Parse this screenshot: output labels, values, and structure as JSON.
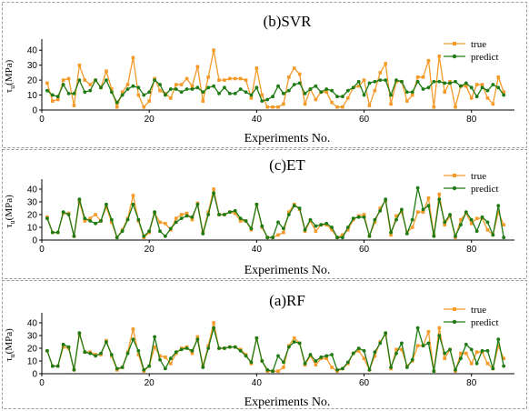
{
  "colors": {
    "true": "#F39A28",
    "predict": "#1E7A12",
    "frame": "#9a9a9a"
  },
  "chart_data": [
    {
      "type": "line",
      "title": "(b)SVR",
      "xlabel": "Experiments No.",
      "ylabel_main": "τ",
      "ylabel_sub": "u",
      "ylabel_unit": "(MPa)",
      "xlim": [
        0,
        88
      ],
      "ylim": [
        0,
        45
      ],
      "xticks": [
        0,
        20,
        40,
        60,
        80
      ],
      "yticks": [
        0,
        10,
        20,
        30,
        40
      ],
      "legend": "top-right",
      "x": [
        1,
        2,
        3,
        4,
        5,
        6,
        7,
        8,
        9,
        10,
        11,
        12,
        13,
        14,
        15,
        16,
        17,
        18,
        19,
        20,
        21,
        22,
        23,
        24,
        25,
        26,
        27,
        28,
        29,
        30,
        31,
        32,
        33,
        34,
        35,
        36,
        37,
        38,
        39,
        40,
        41,
        42,
        43,
        44,
        45,
        46,
        47,
        48,
        49,
        50,
        51,
        52,
        53,
        54,
        55,
        56,
        57,
        58,
        59,
        60,
        61,
        62,
        63,
        64,
        65,
        66,
        67,
        68,
        69,
        70,
        71,
        72,
        73,
        74,
        75,
        76,
        77,
        78,
        79,
        80,
        81,
        82,
        83,
        84,
        85,
        86
      ],
      "series": [
        {
          "name": "true",
          "values": [
            18,
            6,
            7,
            20,
            21,
            3,
            30,
            20,
            17,
            20,
            15,
            26,
            14,
            2,
            12,
            17,
            35,
            10,
            2,
            6,
            21,
            13,
            11,
            8,
            17,
            17,
            21,
            16,
            29,
            6,
            22,
            40,
            20,
            20,
            21,
            21,
            21,
            20,
            8,
            28,
            10,
            2,
            2,
            2,
            4,
            22,
            28,
            24,
            4,
            14,
            7,
            12,
            12,
            5,
            2,
            2,
            8,
            15,
            16,
            20,
            3,
            13,
            25,
            31,
            4,
            19,
            19,
            6,
            10,
            22,
            22,
            33,
            2,
            36,
            12,
            19,
            2,
            16,
            16,
            8,
            17,
            17,
            8,
            4,
            22,
            12
          ]
        },
        {
          "name": "predict",
          "values": [
            13,
            10,
            9,
            17,
            11,
            11,
            20,
            12,
            13,
            20,
            15,
            20,
            12,
            5,
            10,
            14,
            16,
            15,
            10,
            12,
            20,
            17,
            10,
            14,
            14,
            12,
            14,
            14,
            15,
            12,
            15,
            16,
            11,
            15,
            11,
            11,
            14,
            12,
            10,
            15,
            6,
            7,
            9,
            16,
            11,
            13,
            17,
            18,
            11,
            14,
            16,
            12,
            14,
            13,
            9,
            9,
            13,
            15,
            19,
            10,
            18,
            19,
            20,
            20,
            10,
            20,
            19,
            12,
            12,
            19,
            14,
            15,
            19,
            19,
            18,
            18,
            19,
            16,
            18,
            15,
            9,
            15,
            13,
            17,
            15,
            10
          ]
        }
      ]
    },
    {
      "type": "line",
      "title": "(c)ET",
      "xlabel": "Experiments No.",
      "ylabel_main": "τ",
      "ylabel_sub": "u",
      "ylabel_unit": "(MPa)",
      "xlim": [
        0,
        88
      ],
      "ylim": [
        0,
        45
      ],
      "xticks": [
        0,
        20,
        40,
        60,
        80
      ],
      "yticks": [
        0,
        10,
        20,
        30,
        40
      ],
      "legend": "top-right",
      "x": [
        1,
        2,
        3,
        4,
        5,
        6,
        7,
        8,
        9,
        10,
        11,
        12,
        13,
        14,
        15,
        16,
        17,
        18,
        19,
        20,
        21,
        22,
        23,
        24,
        25,
        26,
        27,
        28,
        29,
        30,
        31,
        32,
        33,
        34,
        35,
        36,
        37,
        38,
        39,
        40,
        41,
        42,
        43,
        44,
        45,
        46,
        47,
        48,
        49,
        50,
        51,
        52,
        53,
        54,
        55,
        56,
        57,
        58,
        59,
        60,
        61,
        62,
        63,
        64,
        65,
        66,
        67,
        68,
        69,
        70,
        71,
        72,
        73,
        74,
        75,
        76,
        77,
        78,
        79,
        80,
        81,
        82,
        83,
        84,
        85,
        86
      ],
      "series": [
        {
          "name": "true",
          "values": [
            18,
            6,
            6,
            21,
            21,
            3,
            30,
            15,
            17,
            20,
            15,
            26,
            14,
            2,
            8,
            17,
            35,
            15,
            2,
            6,
            21,
            14,
            13,
            8,
            17,
            20,
            21,
            16,
            29,
            6,
            22,
            40,
            20,
            20,
            22,
            21,
            15,
            15,
            8,
            28,
            10,
            2,
            2,
            4,
            6,
            22,
            28,
            24,
            7,
            15,
            7,
            12,
            12,
            8,
            2,
            4,
            8,
            16,
            19,
            20,
            3,
            14,
            25,
            31,
            4,
            19,
            22,
            6,
            10,
            22,
            22,
            33,
            4,
            36,
            12,
            19,
            2,
            16,
            21,
            13,
            17,
            17,
            8,
            4,
            22,
            12
          ]
        },
        {
          "name": "predict",
          "values": [
            17,
            6,
            6,
            22,
            20,
            3,
            32,
            17,
            15,
            13,
            15,
            28,
            16,
            2,
            7,
            16,
            28,
            16,
            3,
            7,
            22,
            7,
            3,
            9,
            14,
            17,
            19,
            18,
            28,
            5,
            20,
            37,
            20,
            20,
            22,
            23,
            17,
            15,
            9,
            28,
            11,
            2,
            2,
            14,
            9,
            20,
            27,
            25,
            8,
            16,
            11,
            12,
            13,
            10,
            2,
            2,
            10,
            17,
            18,
            18,
            3,
            16,
            23,
            32,
            6,
            16,
            24,
            5,
            16,
            41,
            24,
            27,
            3,
            32,
            14,
            20,
            3,
            12,
            22,
            16,
            7,
            18,
            14,
            4,
            27,
            2
          ]
        }
      ]
    },
    {
      "type": "line",
      "title": "(a)RF",
      "xlabel": "Experiments No.",
      "ylabel_main": "τ",
      "ylabel_sub": "u",
      "ylabel_unit": "(MPa)",
      "xlim": [
        0,
        88
      ],
      "ylim": [
        0,
        45
      ],
      "xticks": [
        0,
        20,
        40,
        60,
        80
      ],
      "yticks": [
        0,
        10,
        20,
        30,
        40
      ],
      "legend": "top-right",
      "x": [
        1,
        2,
        3,
        4,
        5,
        6,
        7,
        8,
        9,
        10,
        11,
        12,
        13,
        14,
        15,
        16,
        17,
        18,
        19,
        20,
        21,
        22,
        23,
        24,
        25,
        26,
        27,
        28,
        29,
        30,
        31,
        32,
        33,
        34,
        35,
        36,
        37,
        38,
        39,
        40,
        41,
        42,
        43,
        44,
        45,
        46,
        47,
        48,
        49,
        50,
        51,
        52,
        53,
        54,
        55,
        56,
        57,
        58,
        59,
        60,
        61,
        62,
        63,
        64,
        65,
        66,
        67,
        68,
        69,
        70,
        71,
        72,
        73,
        74,
        75,
        76,
        77,
        78,
        79,
        80,
        81,
        82,
        83,
        84,
        85,
        86
      ],
      "series": [
        {
          "name": "true",
          "values": [
            18,
            6,
            6,
            21,
            20,
            3,
            31,
            17,
            17,
            15,
            15,
            26,
            14,
            3,
            5,
            17,
            35,
            15,
            2,
            6,
            21,
            14,
            13,
            8,
            16,
            20,
            21,
            16,
            29,
            6,
            22,
            40,
            20,
            20,
            21,
            21,
            19,
            15,
            8,
            28,
            10,
            2,
            2,
            2,
            5,
            22,
            28,
            24,
            7,
            14,
            7,
            12,
            12,
            5,
            2,
            4,
            8,
            16,
            18,
            12,
            3,
            14,
            25,
            31,
            4,
            19,
            19,
            6,
            10,
            22,
            22,
            33,
            2,
            36,
            12,
            19,
            2,
            16,
            16,
            8,
            17,
            17,
            8,
            4,
            22,
            12
          ]
        },
        {
          "name": "predict",
          "values": [
            18,
            6,
            6,
            23,
            21,
            3,
            32,
            17,
            16,
            14,
            16,
            25,
            15,
            4,
            5,
            16,
            27,
            18,
            3,
            6,
            29,
            11,
            4,
            12,
            17,
            19,
            20,
            18,
            27,
            5,
            20,
            36,
            20,
            20,
            21,
            21,
            18,
            14,
            9,
            28,
            10,
            3,
            2,
            14,
            9,
            21,
            25,
            24,
            8,
            15,
            10,
            13,
            14,
            15,
            3,
            4,
            9,
            16,
            20,
            18,
            3,
            17,
            24,
            32,
            5,
            16,
            24,
            5,
            11,
            36,
            22,
            24,
            2,
            30,
            16,
            19,
            3,
            12,
            23,
            19,
            8,
            18,
            18,
            4,
            27,
            6
          ]
        }
      ]
    }
  ]
}
